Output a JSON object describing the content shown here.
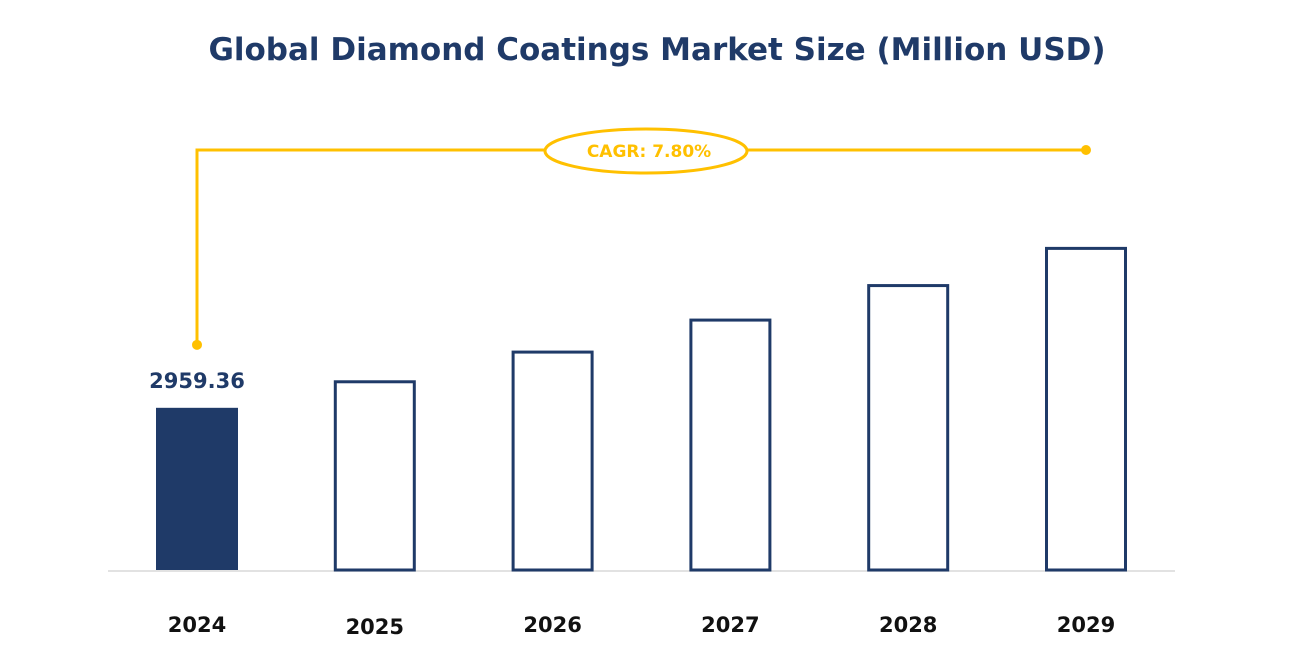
{
  "chart_data": {
    "type": "bar",
    "title": "Global Diamond Coatings Market Size (Million USD)",
    "categories": [
      "2024",
      "2025",
      "2026",
      "2027",
      "2028",
      "2029"
    ],
    "values": [
      2959.36,
      3190.19,
      3439.03,
      3707.27,
      3996.44,
      4308.16
    ],
    "data_labels": [
      "2959.36"
    ],
    "annotation": "CAGR: 7.80%",
    "xlabel": "",
    "ylabel": "",
    "ylim": [
      1600,
      4500
    ],
    "grid": false,
    "colors": {
      "filled_bar": "#1f3a68",
      "outline_bar": "#1f3a68",
      "cagr": "#ffc000",
      "axis": "#d9d9d9"
    }
  }
}
